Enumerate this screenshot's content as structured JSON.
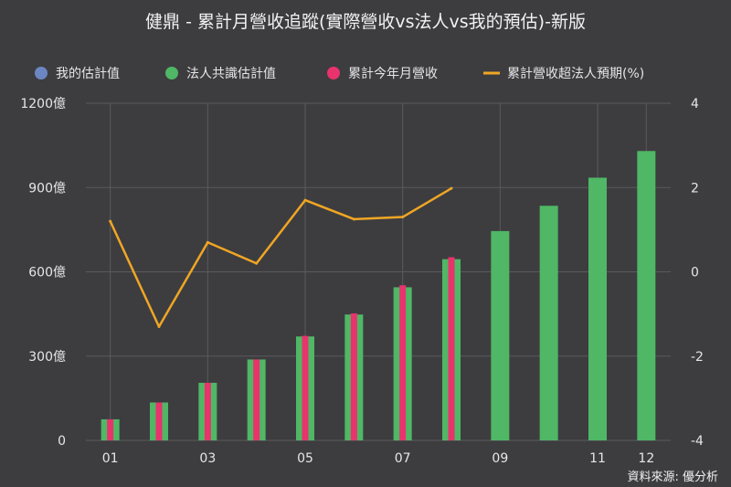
{
  "chart_data": {
    "type": "bar",
    "title": "健鼎 - 累計月營收追蹤(實際營收vs法人vs我的預估)-新版",
    "categories": [
      "01",
      "02",
      "03",
      "04",
      "05",
      "06",
      "07",
      "08",
      "09",
      "10",
      "11",
      "12"
    ],
    "x_tick_labels": [
      "01",
      "",
      "03",
      "",
      "05",
      "",
      "07",
      "",
      "09",
      "",
      "11",
      "12"
    ],
    "series": [
      {
        "name": "我的估計值",
        "type": "bar",
        "axis": "left",
        "color": "#6c86c4",
        "values": [
          null,
          null,
          null,
          null,
          null,
          null,
          null,
          null,
          null,
          null,
          null,
          null
        ]
      },
      {
        "name": "法人共識估計值",
        "type": "bar",
        "axis": "left",
        "color": "#4fb765",
        "values": [
          75,
          135,
          205,
          288,
          370,
          448,
          545,
          645,
          745,
          835,
          935,
          1030
        ]
      },
      {
        "name": "累計今年月營收",
        "type": "bar",
        "axis": "left",
        "color": "#e8336d",
        "values": [
          75,
          135,
          205,
          288,
          372,
          452,
          552,
          652,
          null,
          null,
          null,
          null
        ]
      },
      {
        "name": "累計營收超法人預期(%)",
        "type": "line",
        "axis": "right",
        "color": "#f0a623",
        "values": [
          1.2,
          -1.3,
          0.7,
          0.2,
          1.7,
          1.25,
          1.3,
          1.98,
          null,
          null,
          null,
          null
        ]
      }
    ],
    "y_left": {
      "ylim": [
        0,
        1200
      ],
      "ticks": [
        0,
        300,
        600,
        900,
        1200
      ],
      "tick_labels": [
        "0",
        "300億",
        "600億",
        "900億",
        "1200億"
      ]
    },
    "y_right": {
      "ylim": [
        -4,
        4
      ],
      "ticks": [
        -4,
        -2,
        0,
        2,
        4
      ],
      "tick_labels": [
        "-4",
        "-2",
        "0",
        "2",
        "4"
      ]
    },
    "grid": true,
    "legend_position": "top"
  },
  "source_text": "資料來源: 優分析"
}
